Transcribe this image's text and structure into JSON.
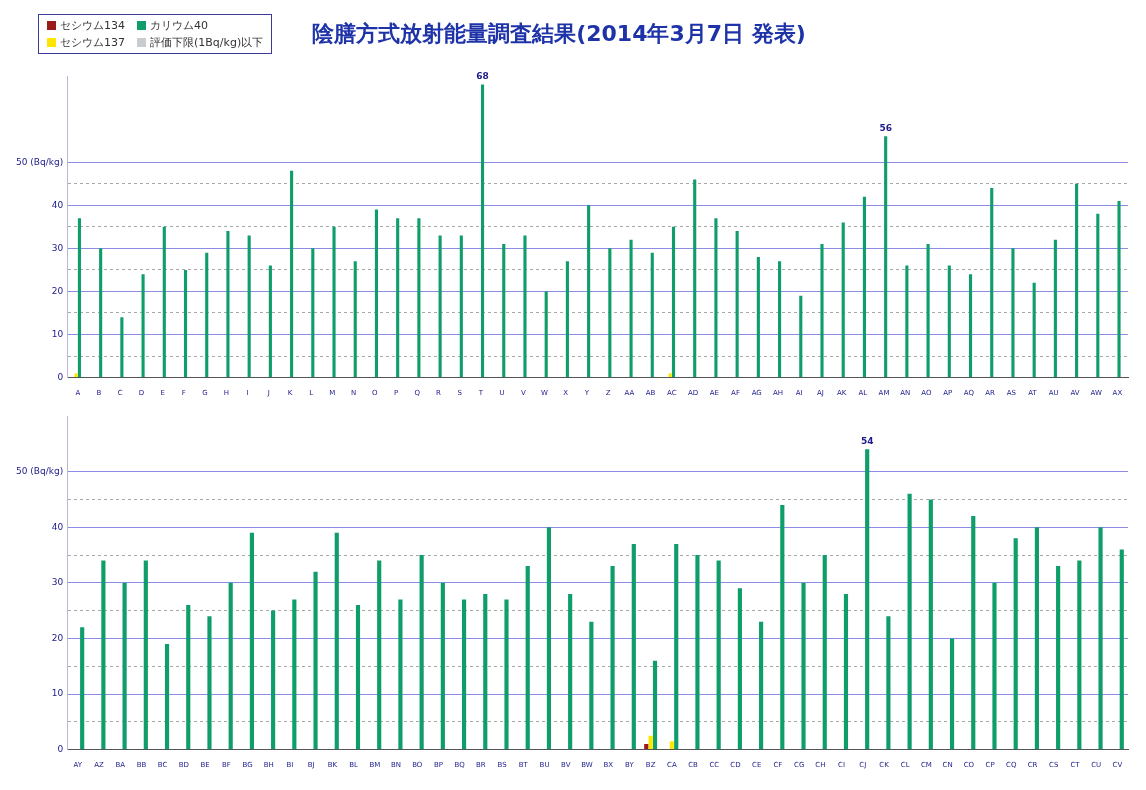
{
  "chart_data": [
    {
      "type": "bar",
      "title": "陰膳方式放射能量調査結果(2014年3月7日 発表)",
      "legend": "top left",
      "grid": "y",
      "categories": [
        "A",
        "B",
        "C",
        "D",
        "E",
        "F",
        "G",
        "H",
        "I",
        "J",
        "K",
        "L",
        "M",
        "N",
        "O",
        "P",
        "Q",
        "R",
        "S",
        "T",
        "U",
        "V",
        "W",
        "X",
        "Y",
        "Z",
        "AA",
        "AB",
        "AC",
        "AD",
        "AE",
        "AF",
        "AG",
        "AH",
        "AI",
        "AJ",
        "AK",
        "AL",
        "AM",
        "AN",
        "AO",
        "AP",
        "AQ",
        "AR",
        "AS",
        "AT",
        "AU",
        "AV",
        "AW",
        "AX"
      ],
      "ylim": [
        0,
        70
      ],
      "yticks": [
        0,
        {
          "value": 5,
          "label": null
        },
        10,
        {
          "value": 15,
          "label": null
        },
        20,
        {
          "value": 25,
          "label": null
        },
        30,
        {
          "value": 35,
          "label": null
        },
        40,
        {
          "value": 45,
          "label": null
        },
        {
          "value": 50,
          "label": "50 (Bq/kg)"
        }
      ],
      "series": [
        {
          "name": "セシウム134",
          "color": "#9b1b1b",
          "values": [
            null,
            null,
            null,
            null,
            null,
            null,
            null,
            null,
            null,
            null,
            null,
            null,
            null,
            null,
            null,
            null,
            null,
            null,
            null,
            null,
            null,
            null,
            null,
            null,
            null,
            null,
            null,
            null,
            null,
            null,
            null,
            null,
            null,
            null,
            null,
            null,
            null,
            null,
            null,
            null,
            null,
            null,
            null,
            null,
            null,
            null,
            null,
            null,
            null,
            null
          ]
        },
        {
          "name": "セシウム137",
          "color": "#ffe600",
          "values": [
            1,
            null,
            null,
            null,
            null,
            null,
            null,
            null,
            null,
            null,
            null,
            null,
            null,
            null,
            null,
            null,
            null,
            null,
            null,
            null,
            null,
            null,
            null,
            null,
            null,
            null,
            null,
            null,
            1,
            null,
            null,
            null,
            null,
            null,
            null,
            null,
            null,
            null,
            null,
            null,
            null,
            null,
            null,
            null,
            null,
            null,
            null,
            null,
            null,
            null
          ]
        },
        {
          "name": "カリウム40",
          "color": "#0f9e6a",
          "values": [
            37,
            30,
            14,
            24,
            35,
            25,
            29,
            34,
            33,
            26,
            48,
            30,
            35,
            27,
            39,
            37,
            37,
            33,
            33,
            68,
            31,
            33,
            20,
            27,
            40,
            30,
            32,
            29,
            35,
            46,
            37,
            34,
            28,
            27,
            19,
            31,
            36,
            42,
            56,
            26,
            31,
            26,
            24,
            44,
            30,
            22,
            32,
            45,
            38,
            41
          ],
          "value_labels": [
            null,
            null,
            null,
            null,
            null,
            null,
            null,
            null,
            null,
            null,
            null,
            null,
            null,
            null,
            null,
            null,
            null,
            null,
            null,
            "68",
            null,
            null,
            null,
            null,
            null,
            null,
            null,
            null,
            null,
            null,
            null,
            null,
            null,
            null,
            null,
            null,
            null,
            null,
            "56",
            null,
            null,
            null,
            null,
            null,
            null,
            null,
            null,
            null,
            null,
            null
          ]
        },
        {
          "name": "評価下限(1Bq/kg)以下",
          "color": "#c8ccd0",
          "values": [
            null,
            null,
            null,
            null,
            null,
            null,
            null,
            null,
            null,
            null,
            null,
            null,
            null,
            null,
            null,
            null,
            null,
            null,
            null,
            null,
            null,
            null,
            null,
            null,
            null,
            null,
            null,
            null,
            null,
            null,
            null,
            null,
            null,
            null,
            null,
            null,
            null,
            null,
            null,
            null,
            null,
            null,
            null,
            null,
            null,
            null,
            null,
            null,
            null,
            null
          ]
        }
      ]
    },
    {
      "type": "bar",
      "grid": "y",
      "categories": [
        "AY",
        "AZ",
        "BA",
        "BB",
        "BC",
        "BD",
        "BE",
        "BF",
        "BG",
        "BH",
        "BI",
        "BJ",
        "BK",
        "BL",
        "BM",
        "BN",
        "BO",
        "BP",
        "BQ",
        "BR",
        "BS",
        "BT",
        "BU",
        "BV",
        "BW",
        "BX",
        "BY",
        "BZ",
        "CA",
        "CB",
        "CC",
        "CD",
        "CE",
        "CF",
        "CG",
        "CH",
        "CI",
        "CJ",
        "CK",
        "CL",
        "CM",
        "CN",
        "CO",
        "CP",
        "CQ",
        "CR",
        "CS",
        "CT",
        "CU",
        "CV"
      ],
      "ylim": [
        0,
        60
      ],
      "yticks": [
        0,
        {
          "value": 5,
          "label": null
        },
        10,
        {
          "value": 15,
          "label": null
        },
        20,
        {
          "value": 25,
          "label": null
        },
        30,
        {
          "value": 35,
          "label": null
        },
        40,
        {
          "value": 45,
          "label": null
        },
        {
          "value": 50,
          "label": "50 (Bq/kg)"
        }
      ],
      "series": [
        {
          "color": "#9b1b1b",
          "values": [
            null,
            null,
            null,
            null,
            null,
            null,
            null,
            null,
            null,
            null,
            null,
            null,
            null,
            null,
            null,
            null,
            null,
            null,
            null,
            null,
            null,
            null,
            null,
            null,
            null,
            null,
            null,
            1,
            null,
            null,
            null,
            null,
            null,
            null,
            null,
            null,
            null,
            null,
            null,
            null,
            null,
            null,
            null,
            null,
            null,
            null,
            null,
            null,
            null,
            null
          ]
        },
        {
          "color": "#ffe600",
          "values": [
            null,
            null,
            null,
            null,
            null,
            null,
            null,
            null,
            null,
            null,
            null,
            null,
            null,
            null,
            null,
            null,
            null,
            null,
            null,
            null,
            null,
            null,
            null,
            null,
            null,
            null,
            null,
            2.5,
            1.5,
            null,
            null,
            null,
            null,
            null,
            null,
            null,
            null,
            null,
            null,
            null,
            null,
            null,
            null,
            null,
            null,
            null,
            null,
            null,
            null,
            null
          ]
        },
        {
          "color": "#0f9e6a",
          "values": [
            22,
            34,
            30,
            34,
            19,
            26,
            24,
            30,
            39,
            25,
            27,
            32,
            39,
            26,
            34,
            27,
            35,
            30,
            27,
            28,
            27,
            33,
            40,
            28,
            23,
            33,
            37,
            16,
            37,
            35,
            34,
            29,
            23,
            44,
            30,
            35,
            28,
            54,
            24,
            46,
            45,
            20,
            42,
            30,
            38,
            40,
            33,
            34,
            40,
            36
          ],
          "value_labels": [
            null,
            null,
            null,
            null,
            null,
            null,
            null,
            null,
            null,
            null,
            null,
            null,
            null,
            null,
            null,
            null,
            null,
            null,
            null,
            null,
            null,
            null,
            null,
            null,
            null,
            null,
            null,
            null,
            null,
            null,
            null,
            null,
            null,
            null,
            null,
            null,
            null,
            "54",
            null,
            null,
            null,
            null,
            null,
            null,
            null,
            null,
            null,
            null,
            null,
            null
          ]
        }
      ]
    }
  ]
}
